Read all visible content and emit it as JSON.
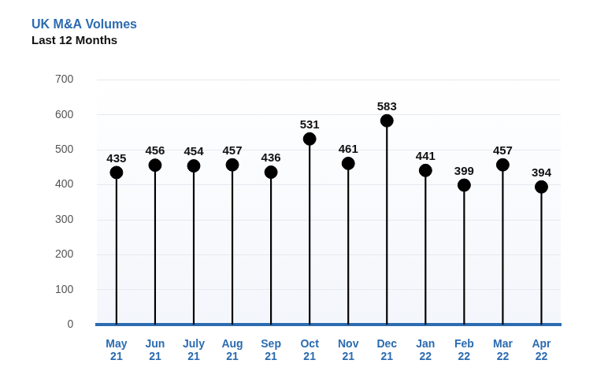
{
  "chart_data": {
    "type": "lollipop",
    "title": "UK M&A Volumes",
    "subtitle": "Last 12 Months",
    "categories": [
      "May 21",
      "Jun 21",
      "July 21",
      "Aug 21",
      "Sep 21",
      "Oct 21",
      "Nov 21",
      "Dec 21",
      "Jan 22",
      "Feb 22",
      "Mar 22",
      "Apr 22"
    ],
    "values": [
      435,
      456,
      454,
      457,
      436,
      531,
      461,
      583,
      441,
      399,
      457,
      394
    ],
    "color": "#000000",
    "marker": "circle",
    "ylim": [
      0,
      700
    ],
    "yticks": [
      0,
      100,
      200,
      300,
      400,
      500,
      600,
      700
    ],
    "grid": true,
    "data_labels": true
  }
}
